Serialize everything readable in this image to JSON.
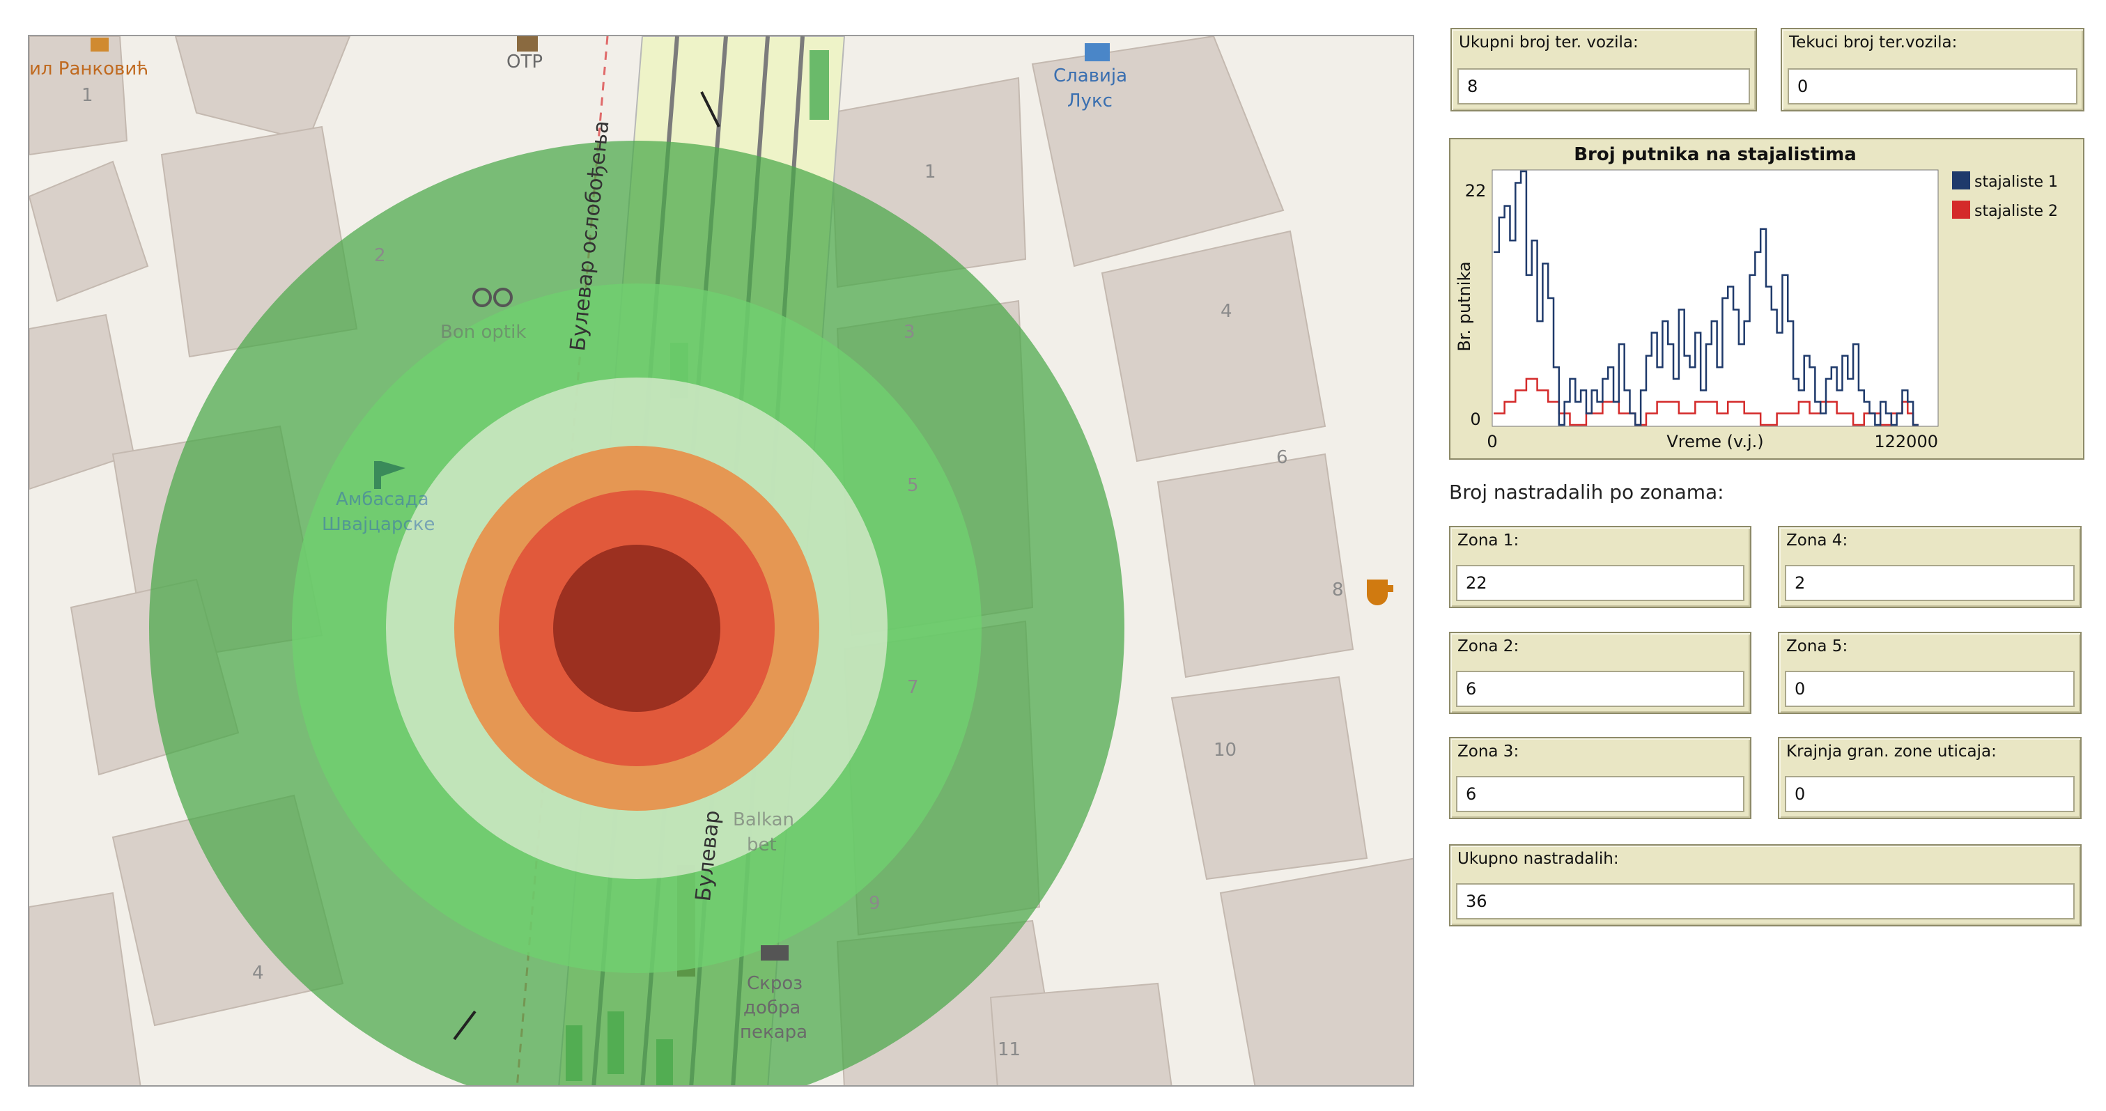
{
  "map": {
    "house_numbers": [
      "1",
      "1",
      "2",
      "3",
      "4",
      "4",
      "5",
      "6",
      "7",
      "8",
      "9",
      "10",
      "11"
    ],
    "pois": {
      "top_left_street": "ил Ранковић",
      "otp": "OTP",
      "slavija_lux_1": "Славија",
      "slavija_lux_2": "Лукс",
      "optic": "Bon optik",
      "embassy_1": "Амбасада",
      "embassy_2": "Швајцарске",
      "bet_1": "Balkan",
      "bet_2": "bet",
      "bakery_1": "Скроз",
      "bakery_2": "добра",
      "bakery_3": "пекара",
      "street_1": "Булевар ослобођења",
      "street_2": "Булевар"
    },
    "zone_colors": {
      "zone5": "#4aa84a",
      "zone4": "#6fcf6f",
      "zone3": "#cfe8c5",
      "zone2": "#e8904a",
      "zone1": "#e0553a",
      "core": "#9c3020"
    }
  },
  "monitors": {
    "ukupni_label": "Ukupni broj ter. vozila:",
    "ukupni_value": "8",
    "tekuci_label": "Tekuci broj ter.vozila:",
    "tekuci_value": "0",
    "section_title": "Broj nastradalih po zonama:",
    "zona1_label": "Zona 1:",
    "zona1_value": "22",
    "zona2_label": "Zona 2:",
    "zona2_value": "6",
    "zona3_label": "Zona 3:",
    "zona3_value": "6",
    "zona4_label": "Zona 4:",
    "zona4_value": "2",
    "zona5_label": "Zona 5:",
    "zona5_value": "0",
    "krajnja_label": "Krajnja gran. zone uticaja:",
    "krajnja_value": "0",
    "ukupno_label": "Ukupno nastradalih:",
    "ukupno_value": "36"
  },
  "chart_data": {
    "type": "line",
    "title": "Broj putnika na stajalistima",
    "xlabel": "Vreme (v.j.)",
    "ylabel": "Br. putnika",
    "xlim": [
      0,
      122000
    ],
    "ylim": [
      0,
      22
    ],
    "x_tick_labels": [
      "0",
      "122000"
    ],
    "y_tick_labels": [
      "0",
      "22"
    ],
    "legend_position": "top-right",
    "series": [
      {
        "name": "stajaliste 1",
        "color": "#1f3a6b",
        "x": [
          0,
          1500,
          3000,
          4500,
          6000,
          7500,
          9000,
          10500,
          12000,
          13500,
          15000,
          16500,
          18000,
          19500,
          21000,
          22500,
          24000,
          25500,
          27000,
          28500,
          30000,
          31500,
          33000,
          34500,
          36000,
          37500,
          39000,
          40500,
          42000,
          43500,
          45000,
          46500,
          48000,
          49500,
          51000,
          52500,
          54000,
          55500,
          57000,
          58500,
          60000,
          61500,
          63000,
          64500,
          66000,
          67500,
          69000,
          70500,
          72000,
          73500,
          75000,
          76500,
          78000,
          79500,
          81000,
          82500,
          84000,
          85500,
          87000,
          88500,
          90000,
          91500,
          93000,
          94500,
          96000,
          97500,
          99000,
          100500,
          102000,
          103500,
          105000,
          106500,
          108000,
          109500,
          111000,
          112500,
          114000,
          115500,
          117000
        ],
        "y": [
          15,
          18,
          19,
          16,
          21,
          23,
          13,
          16,
          9,
          14,
          11,
          5,
          0,
          2,
          4,
          2,
          3,
          1,
          3,
          2,
          4,
          5,
          2,
          7,
          3,
          1,
          0,
          3,
          6,
          8,
          5,
          9,
          7,
          4,
          10,
          6,
          5,
          8,
          3,
          7,
          9,
          5,
          11,
          12,
          10,
          7,
          9,
          13,
          15,
          17,
          12,
          10,
          8,
          13,
          9,
          4,
          3,
          6,
          5,
          2,
          1,
          4,
          5,
          3,
          6,
          4,
          7,
          3,
          2,
          1,
          0,
          2,
          1,
          0,
          1,
          3,
          2,
          0,
          0
        ]
      },
      {
        "name": "stajaliste 2",
        "color": "#d42a2a",
        "x": [
          0,
          1500,
          3000,
          4500,
          6000,
          7500,
          9000,
          10500,
          12000,
          13500,
          15000,
          16500,
          18000,
          19500,
          21000,
          22500,
          24000,
          25500,
          27000,
          28500,
          30000,
          31500,
          33000,
          34500,
          36000,
          37500,
          39000,
          40500,
          42000,
          43500,
          45000,
          46500,
          48000,
          49500,
          51000,
          52500,
          54000,
          55500,
          57000,
          58500,
          60000,
          61500,
          63000,
          64500,
          66000,
          67500,
          69000,
          70500,
          72000,
          73500,
          75000,
          76500,
          78000,
          79500,
          81000,
          82500,
          84000,
          85500,
          87000,
          88500,
          90000,
          91500,
          93000,
          94500,
          96000,
          97500,
          99000,
          100500,
          102000,
          103500,
          105000,
          106500,
          108000,
          109500,
          111000,
          112500,
          114000,
          115500,
          117000
        ],
        "y": [
          1,
          1,
          2,
          2,
          3,
          3,
          4,
          4,
          3,
          3,
          2,
          2,
          1,
          1,
          0,
          0,
          0,
          1,
          1,
          1,
          2,
          2,
          2,
          1,
          1,
          1,
          0,
          0,
          1,
          1,
          2,
          2,
          2,
          2,
          1,
          1,
          1,
          2,
          2,
          2,
          2,
          1,
          1,
          2,
          2,
          2,
          1,
          1,
          1,
          0,
          0,
          0,
          1,
          1,
          1,
          1,
          2,
          2,
          1,
          1,
          2,
          2,
          2,
          1,
          1,
          1,
          0,
          0,
          1,
          1,
          1,
          0,
          0,
          1,
          1,
          2,
          1,
          0,
          0
        ]
      }
    ]
  }
}
